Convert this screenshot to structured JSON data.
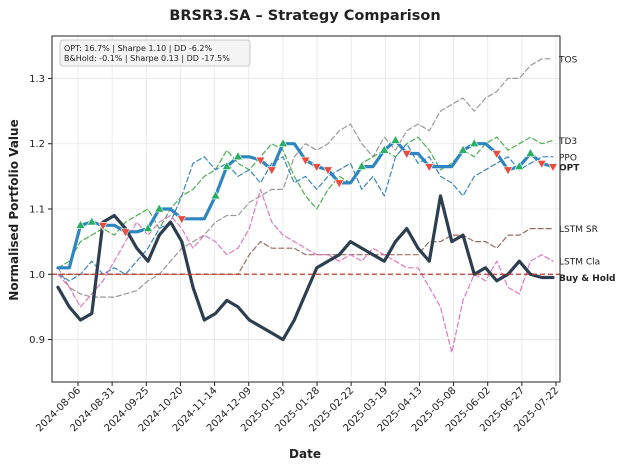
{
  "chart_data": {
    "type": "line",
    "title": "BRSR3.SA – Strategy Comparison",
    "xlabel": "Date",
    "ylabel": "Normalised Portfolio Value",
    "ylim": [
      0.835,
      1.365
    ],
    "yticks": [
      "0.9",
      "1.0",
      "1.1",
      "1.2",
      "1.3"
    ],
    "xticks": [
      "2024-08-06",
      "2024-08-31",
      "2024-09-25",
      "2024-10-20",
      "2024-11-14",
      "2024-12-09",
      "2025-01-03",
      "2025-01-28",
      "2025-02-22",
      "2025-03-19",
      "2025-04-13",
      "2025-05-08",
      "2025-06-02",
      "2025-06-27",
      "2025-07-22"
    ],
    "stats_box": [
      "OPT: 16.7% | Sharpe 1.10 | DD -6.2%",
      "B&Hold: -0.1% | Sharpe 0.13 | DD -17.5%"
    ],
    "baseline": 1.0,
    "grid": true,
    "series": [
      {
        "name": "TOS",
        "color": "#999999",
        "dashed": true,
        "width": 1.2,
        "values": [
          1.01,
          0.98,
          0.97,
          0.965,
          0.965,
          0.965,
          0.97,
          0.975,
          0.99,
          1.0,
          1.02,
          1.04,
          1.05,
          1.06,
          1.08,
          1.09,
          1.09,
          1.11,
          1.12,
          1.13,
          1.13,
          1.18,
          1.2,
          1.19,
          1.2,
          1.22,
          1.23,
          1.2,
          1.18,
          1.21,
          1.19,
          1.22,
          1.23,
          1.22,
          1.25,
          1.26,
          1.27,
          1.25,
          1.27,
          1.28,
          1.3,
          1.3,
          1.32,
          1.33,
          1.33
        ]
      },
      {
        "name": "TD3",
        "color": "#4caf50",
        "dashed": true,
        "width": 1.2,
        "values": [
          1.01,
          1.02,
          1.05,
          1.06,
          1.07,
          1.06,
          1.08,
          1.09,
          1.1,
          1.07,
          1.1,
          1.12,
          1.13,
          1.15,
          1.16,
          1.19,
          1.17,
          1.16,
          1.18,
          1.2,
          1.19,
          1.15,
          1.12,
          1.1,
          1.13,
          1.15,
          1.14,
          1.17,
          1.18,
          1.19,
          1.18,
          1.2,
          1.21,
          1.19,
          1.16,
          1.17,
          1.19,
          1.18,
          1.2,
          1.21,
          1.19,
          1.2,
          1.21,
          1.2,
          1.205
        ]
      },
      {
        "name": "PPO",
        "color": "#3a85c0",
        "dashed": true,
        "width": 1.2,
        "values": [
          1.0,
          0.99,
          1.0,
          1.02,
          1.0,
          1.01,
          1.0,
          1.02,
          1.04,
          1.07,
          1.08,
          1.12,
          1.17,
          1.18,
          1.16,
          1.17,
          1.15,
          1.16,
          1.14,
          1.17,
          1.18,
          1.14,
          1.15,
          1.13,
          1.15,
          1.16,
          1.17,
          1.13,
          1.15,
          1.12,
          1.18,
          1.2,
          1.17,
          1.18,
          1.15,
          1.14,
          1.12,
          1.15,
          1.16,
          1.17,
          1.18,
          1.16,
          1.17,
          1.18,
          1.18
        ]
      },
      {
        "name": "LSTM SR",
        "color": "#9c6b5e",
        "dashed": true,
        "width": 1.2,
        "values": [
          1.0,
          1.0,
          1.0,
          1.0,
          1.0,
          1.0,
          1.0,
          1.0,
          1.0,
          1.0,
          1.0,
          1.0,
          1.0,
          1.0,
          1.0,
          1.0,
          1.0,
          1.03,
          1.05,
          1.04,
          1.04,
          1.04,
          1.03,
          1.03,
          1.03,
          1.03,
          1.03,
          1.03,
          1.03,
          1.03,
          1.03,
          1.03,
          1.03,
          1.05,
          1.05,
          1.06,
          1.06,
          1.05,
          1.05,
          1.04,
          1.06,
          1.06,
          1.07,
          1.07,
          1.07
        ]
      },
      {
        "name": "LSTM Cla",
        "color": "#e377c2",
        "dashed": true,
        "width": 1.2,
        "values": [
          1.0,
          0.98,
          0.95,
          0.97,
          0.99,
          1.02,
          1.05,
          1.08,
          1.06,
          1.08,
          1.09,
          1.07,
          1.04,
          1.06,
          1.05,
          1.03,
          1.04,
          1.07,
          1.13,
          1.08,
          1.06,
          1.05,
          1.04,
          1.03,
          1.03,
          1.02,
          1.03,
          1.02,
          1.04,
          1.03,
          1.02,
          1.01,
          1.01,
          0.98,
          0.95,
          0.88,
          0.96,
          1.0,
          0.99,
          1.02,
          0.98,
          0.97,
          1.02,
          1.03,
          1.02
        ]
      },
      {
        "name": "OPT",
        "color": "#2e86c1",
        "dashed": false,
        "width": 3.2,
        "markers": true,
        "values": [
          1.01,
          1.01,
          1.075,
          1.08,
          1.075,
          1.075,
          1.065,
          1.065,
          1.07,
          1.1,
          1.1,
          1.085,
          1.085,
          1.085,
          1.12,
          1.165,
          1.18,
          1.18,
          1.175,
          1.16,
          1.2,
          1.2,
          1.175,
          1.165,
          1.16,
          1.14,
          1.14,
          1.165,
          1.165,
          1.19,
          1.205,
          1.185,
          1.185,
          1.165,
          1.165,
          1.165,
          1.19,
          1.2,
          1.2,
          1.185,
          1.16,
          1.165,
          1.185,
          1.17,
          1.165
        ]
      },
      {
        "name": "Buy & Hold",
        "color": "#2c3e50",
        "dashed": false,
        "width": 3.2,
        "values": [
          0.98,
          0.95,
          0.93,
          0.94,
          1.08,
          1.09,
          1.07,
          1.04,
          1.02,
          1.06,
          1.08,
          1.05,
          0.98,
          0.93,
          0.94,
          0.96,
          0.95,
          0.93,
          0.92,
          0.91,
          0.9,
          0.93,
          0.97,
          1.01,
          1.02,
          1.03,
          1.05,
          1.04,
          1.03,
          1.02,
          1.05,
          1.07,
          1.04,
          1.02,
          1.12,
          1.05,
          1.06,
          1.0,
          1.01,
          0.99,
          1.0,
          1.02,
          1.0,
          0.995,
          0.995
        ]
      }
    ]
  }
}
